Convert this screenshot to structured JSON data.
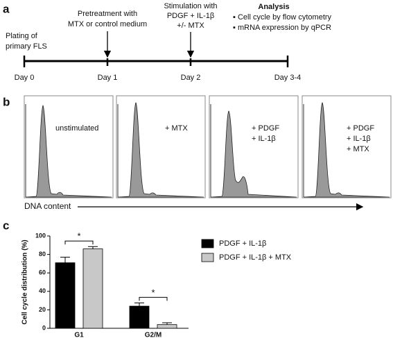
{
  "panel_a": {
    "label": "a",
    "start": [
      "Plating of",
      "primary FLS"
    ],
    "pretreatment": [
      "Pretreatment with",
      "MTX or control medium"
    ],
    "stimulation": [
      "Stimulation with",
      "PDGF + IL-1β",
      "+/- MTX"
    ],
    "analysis": {
      "title": "Analysis",
      "items": [
        "▪ Cell cycle by flow cytometry",
        "▪ mRNA expression by qPCR"
      ]
    },
    "days": [
      "Day 0",
      "Day 1",
      "Day 2",
      "Day 3-4"
    ]
  },
  "panel_b": {
    "label": "b",
    "conditions": [
      [
        "unstimulated"
      ],
      [
        "+ MTX"
      ],
      [
        "+ PDGF",
        "+ IL-1β"
      ],
      [
        "+ PDGF",
        "+ IL-1β",
        "+ MTX"
      ]
    ],
    "x_label": "DNA content"
  },
  "panel_c_label": "c",
  "chart_data": {
    "type": "bar",
    "y_label": "Cell cycle distribution (%)",
    "categories": [
      "G1",
      "G2/M"
    ],
    "series": [
      {
        "name": "PDGF + IL-1β",
        "color": "#000000",
        "values": [
          71,
          24
        ],
        "errors": [
          6,
          3.5
        ]
      },
      {
        "name": "PDGF + IL-1β + MTX",
        "color": "#c8c8c8",
        "values": [
          86,
          4
        ],
        "errors": [
          2.5,
          2
        ]
      }
    ],
    "annotations": [
      "*",
      "*"
    ],
    "ylim": [
      0,
      100
    ],
    "yticks": [
      0,
      20,
      40,
      60,
      80,
      100
    ],
    "grid": false
  }
}
